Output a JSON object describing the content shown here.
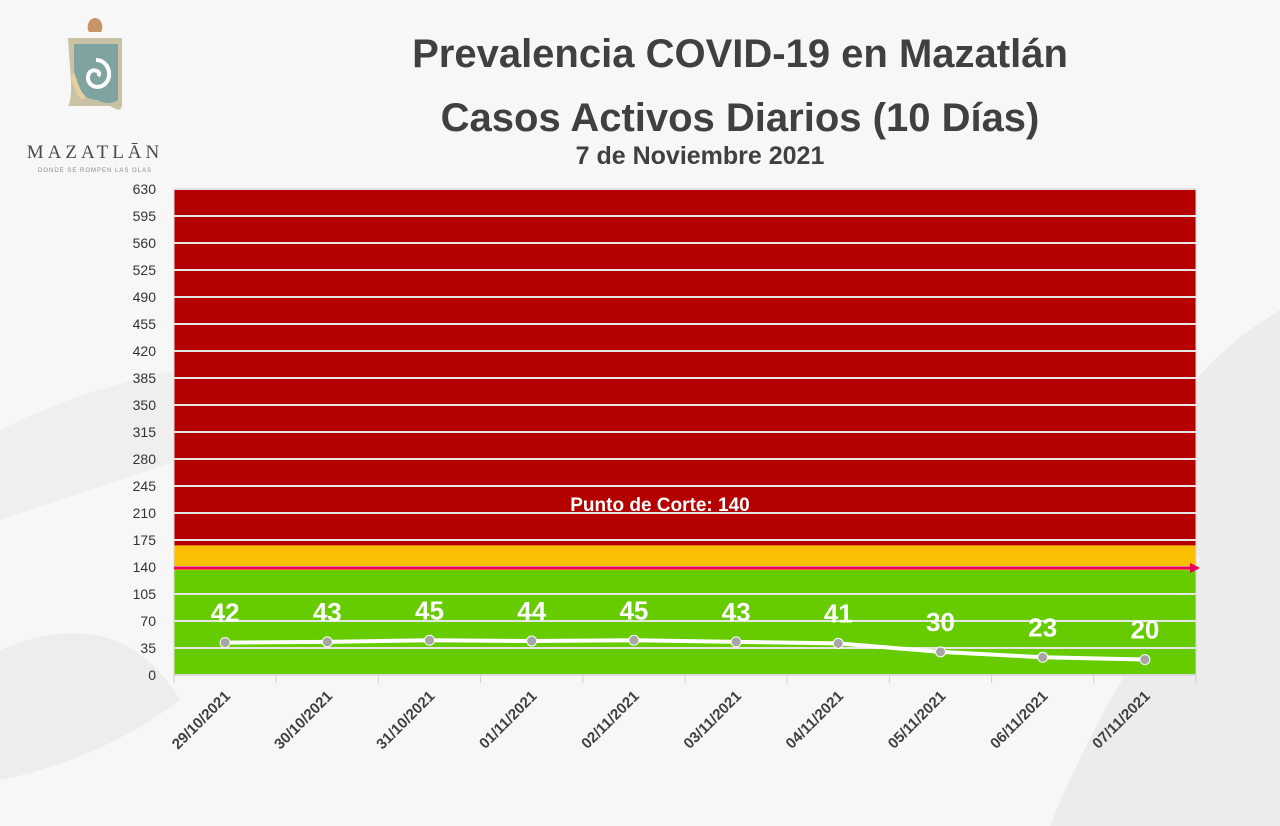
{
  "logo": {
    "name": "MAZATLĀN",
    "tagline": "DONDE SE ROMPEN LAS OLAS"
  },
  "header": {
    "title_line1": "Prevalencia COVID-19 en Mazatlán",
    "title_line2": "Casos Activos Diarios (10 Días)",
    "date": "7 de Noviembre 2021"
  },
  "colors": {
    "red_zone": "#b50000",
    "yellow_zone": "#f9bf00",
    "green_zone": "#66cc00",
    "cutoff_line": "#e8005a",
    "series_line": "#ffffff",
    "series_marker": "#a6a6a6"
  },
  "chart_data": {
    "type": "line",
    "categories": [
      "29/10/2021",
      "30/10/2021",
      "31/10/2021",
      "01/11/2021",
      "02/11/2021",
      "03/11/2021",
      "04/11/2021",
      "05/11/2021",
      "06/11/2021",
      "07/11/2021"
    ],
    "values": [
      42,
      43,
      45,
      44,
      45,
      43,
      41,
      30,
      23,
      20
    ],
    "data_labels": [
      "42",
      "43",
      "45",
      "44",
      "45",
      "43",
      "41",
      "30",
      "23",
      "20"
    ],
    "ylim": [
      0,
      630
    ],
    "yticks": [
      "0",
      "35",
      "70",
      "105",
      "140",
      "175",
      "210",
      "245",
      "280",
      "315",
      "350",
      "385",
      "420",
      "455",
      "490",
      "525",
      "560",
      "595",
      "630"
    ],
    "grid": true,
    "zones": [
      {
        "from": 0,
        "to": 136,
        "color": "green"
      },
      {
        "from": 136,
        "to": 168,
        "color": "yellow"
      },
      {
        "from": 168,
        "to": 630,
        "color": "red"
      }
    ],
    "cutoff": {
      "value": 140,
      "label": "Punto de Corte: 140"
    }
  }
}
